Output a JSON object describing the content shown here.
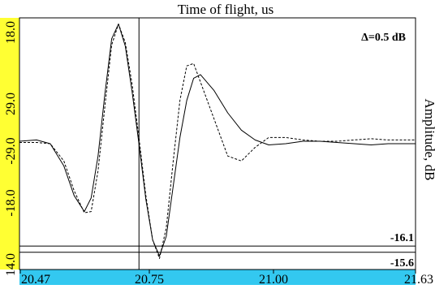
{
  "chart_data": {
    "type": "line",
    "title": "Time of flight, us",
    "ylabel": "Amplitude, dB",
    "delta_label": "Δ=0.5 dB",
    "x_ticks": [
      "20.47",
      "20.75",
      "21.00",
      "21.63"
    ],
    "y_ticks": [
      "18.0",
      "29.0",
      "-29.0",
      "-18.0",
      "14.0"
    ],
    "xlim": [
      20.47,
      21.63
    ],
    "ylim": [
      -1.0,
      1.0
    ],
    "cursor_x": 20.82,
    "grid": false,
    "legend": "none",
    "series": [
      {
        "style": "solid",
        "x": [
          20.47,
          20.52,
          20.56,
          20.6,
          20.63,
          20.66,
          20.68,
          20.7,
          20.72,
          20.74,
          20.76,
          20.78,
          20.8,
          20.82,
          20.84,
          20.86,
          20.88,
          20.9,
          20.92,
          20.94,
          20.96,
          20.98,
          21.0,
          21.04,
          21.08,
          21.12,
          21.16,
          21.2,
          21.25,
          21.3,
          21.35,
          21.4,
          21.45,
          21.5,
          21.55,
          21.63
        ],
        "y": [
          0.02,
          0.03,
          0.0,
          -0.18,
          -0.42,
          -0.55,
          -0.44,
          -0.1,
          0.4,
          0.85,
          0.97,
          0.79,
          0.42,
          0.0,
          -0.45,
          -0.78,
          -0.91,
          -0.75,
          -0.35,
          0.05,
          0.35,
          0.53,
          0.56,
          0.43,
          0.25,
          0.11,
          0.03,
          -0.01,
          0.0,
          0.02,
          0.02,
          0.01,
          0.0,
          -0.01,
          0.0,
          0.0
        ]
      },
      {
        "style": "dashed",
        "x": [
          20.47,
          20.52,
          20.56,
          20.6,
          20.63,
          20.66,
          20.68,
          20.7,
          20.72,
          20.74,
          20.76,
          20.78,
          20.8,
          20.82,
          20.84,
          20.86,
          20.88,
          20.9,
          20.92,
          20.94,
          20.96,
          20.98,
          21.0,
          21.04,
          21.08,
          21.12,
          21.16,
          21.2,
          21.25,
          21.3,
          21.35,
          21.4,
          21.45,
          21.5,
          21.55,
          21.63
        ],
        "y": [
          0.01,
          0.01,
          0.0,
          -0.14,
          -0.38,
          -0.56,
          -0.55,
          -0.22,
          0.3,
          0.8,
          0.97,
          0.82,
          0.48,
          0.05,
          -0.42,
          -0.78,
          -0.93,
          -0.68,
          -0.15,
          0.35,
          0.63,
          0.65,
          0.5,
          0.2,
          -0.1,
          -0.14,
          -0.03,
          0.05,
          0.05,
          0.03,
          0.02,
          0.02,
          0.03,
          0.04,
          0.03,
          0.03
        ]
      }
    ],
    "markers": [
      {
        "label": "-16.1",
        "y": -0.83
      },
      {
        "label": "-15.6",
        "y": -0.88
      }
    ],
    "colors": {
      "left_axis_band": "#ffff33",
      "bottom_axis_band": "#33c8f0",
      "line": "#000000"
    }
  }
}
